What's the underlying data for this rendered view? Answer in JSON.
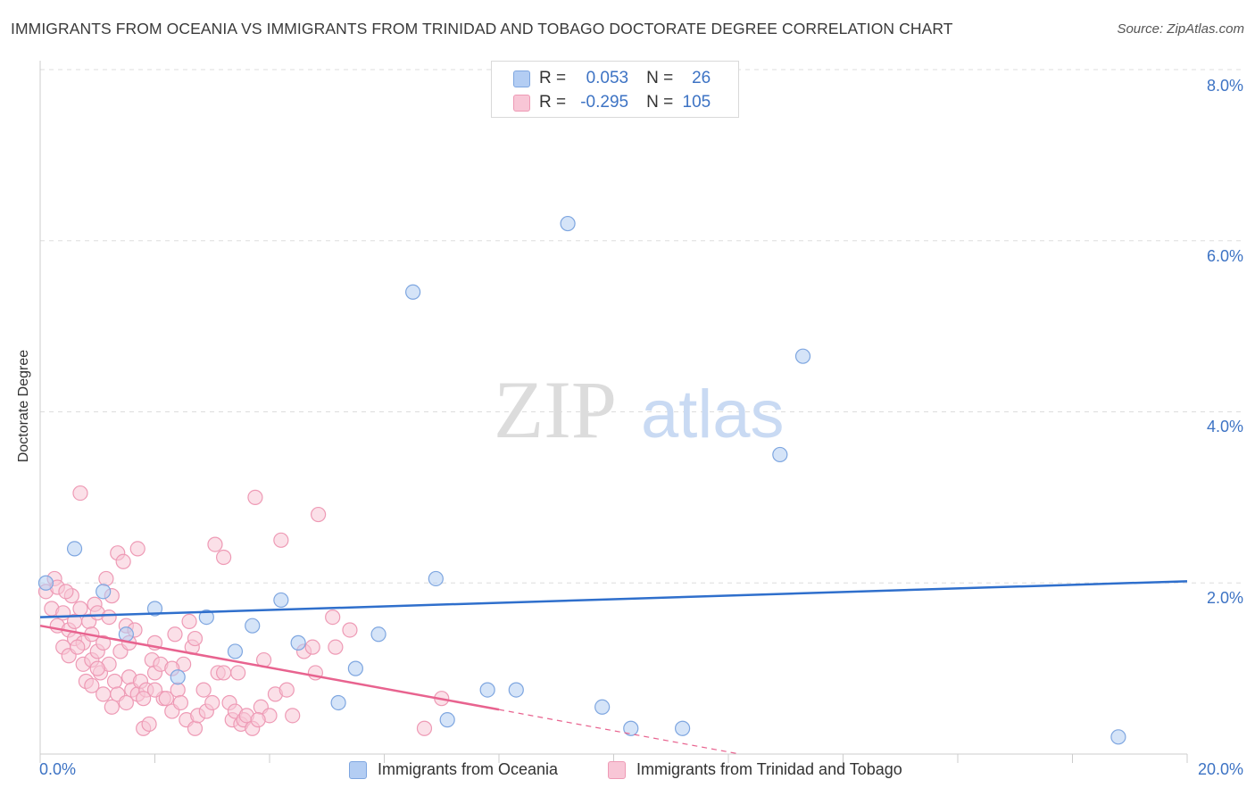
{
  "title": "IMMIGRANTS FROM OCEANIA VS IMMIGRANTS FROM TRINIDAD AND TOBAGO DOCTORATE DEGREE CORRELATION CHART",
  "source": "Source: ZipAtlas.com",
  "watermark": {
    "zip": "ZIP",
    "atlas": "atlas"
  },
  "legend_top": [
    {
      "r_label": "R =",
      "r_value": "0.053",
      "n_label": "N =",
      "n_value": "26"
    },
    {
      "r_label": "R =",
      "r_value": "-0.295",
      "n_label": "N =",
      "n_value": "105"
    }
  ],
  "colors": {
    "blue_fill": "#b3cdf3",
    "blue_stroke": "#7ea6e0",
    "blue_line": "#2f6fcc",
    "pink_fill": "#f8c6d6",
    "pink_stroke": "#ee9ab5",
    "pink_line": "#e8638f",
    "tick_text": "#3d73c4",
    "grid": "#dddddd"
  },
  "chart_data": {
    "type": "scatter",
    "title": "IMMIGRANTS FROM OCEANIA VS IMMIGRANTS FROM TRINIDAD AND TOBAGO DOCTORATE DEGREE CORRELATION CHART",
    "xlabel": "",
    "ylabel": "Doctorate Degree",
    "xlim": [
      0,
      20
    ],
    "ylim": [
      0,
      8
    ],
    "x_tick_labels": [
      "0.0%",
      "20.0%"
    ],
    "y_ticks": [
      2,
      4,
      6,
      8
    ],
    "y_tick_labels": [
      "2.0%",
      "4.0%",
      "6.0%",
      "8.0%"
    ],
    "grid": true,
    "series": [
      {
        "name": "Immigrants from Oceania",
        "color": "blue",
        "R": 0.053,
        "N": 26,
        "trend": {
          "x0": 0,
          "y0": 1.6,
          "x1": 20,
          "y1": 2.02
        },
        "points": [
          [
            0.1,
            2.0
          ],
          [
            0.6,
            2.4
          ],
          [
            1.1,
            1.9
          ],
          [
            1.5,
            1.4
          ],
          [
            2.0,
            1.7
          ],
          [
            2.4,
            0.9
          ],
          [
            2.9,
            1.6
          ],
          [
            3.4,
            1.2
          ],
          [
            3.7,
            1.5
          ],
          [
            4.2,
            1.8
          ],
          [
            4.5,
            1.3
          ],
          [
            5.2,
            0.6
          ],
          [
            5.5,
            1.0
          ],
          [
            5.9,
            1.4
          ],
          [
            6.5,
            5.4
          ],
          [
            6.9,
            2.05
          ],
          [
            7.1,
            0.4
          ],
          [
            7.8,
            0.75
          ],
          [
            8.3,
            0.75
          ],
          [
            9.2,
            6.2
          ],
          [
            9.8,
            0.55
          ],
          [
            10.3,
            0.3
          ],
          [
            11.2,
            0.3
          ],
          [
            12.9,
            3.5
          ],
          [
            13.3,
            4.65
          ],
          [
            18.8,
            0.2
          ]
        ]
      },
      {
        "name": "Immigrants from Trinidad and Tobago",
        "color": "pink",
        "R": -0.295,
        "N": 105,
        "trend": {
          "x0": 0,
          "y0": 1.5,
          "x1": 8.0,
          "y1": 0.52
        },
        "trend_dashed": {
          "x0": 8.0,
          "y0": 0.52,
          "x1": 12.2,
          "y1": 0.0
        },
        "points": [
          [
            0.1,
            1.9
          ],
          [
            0.2,
            1.7
          ],
          [
            0.25,
            2.05
          ],
          [
            0.3,
            1.5
          ],
          [
            0.3,
            1.95
          ],
          [
            0.4,
            1.65
          ],
          [
            0.4,
            1.25
          ],
          [
            0.5,
            1.45
          ],
          [
            0.5,
            1.15
          ],
          [
            0.55,
            1.85
          ],
          [
            0.6,
            1.35
          ],
          [
            0.6,
            1.55
          ],
          [
            0.7,
            3.05
          ],
          [
            0.7,
            1.7
          ],
          [
            0.75,
            1.3
          ],
          [
            0.75,
            1.05
          ],
          [
            0.8,
            0.85
          ],
          [
            0.85,
            1.55
          ],
          [
            0.9,
            1.4
          ],
          [
            0.9,
            1.1
          ],
          [
            0.95,
            1.75
          ],
          [
            1.0,
            1.65
          ],
          [
            1.0,
            1.2
          ],
          [
            1.05,
            0.95
          ],
          [
            1.1,
            0.7
          ],
          [
            1.1,
            1.3
          ],
          [
            1.15,
            2.05
          ],
          [
            1.2,
            1.6
          ],
          [
            1.2,
            1.05
          ],
          [
            1.25,
            1.85
          ],
          [
            1.3,
            0.85
          ],
          [
            1.35,
            2.35
          ],
          [
            1.35,
            0.7
          ],
          [
            1.4,
            1.2
          ],
          [
            1.45,
            2.25
          ],
          [
            1.5,
            1.5
          ],
          [
            1.5,
            0.6
          ],
          [
            1.55,
            0.9
          ],
          [
            1.6,
            0.75
          ],
          [
            1.65,
            1.45
          ],
          [
            1.7,
            2.4
          ],
          [
            1.7,
            0.7
          ],
          [
            1.75,
            0.85
          ],
          [
            1.8,
            0.3
          ],
          [
            1.85,
            0.75
          ],
          [
            1.9,
            0.35
          ],
          [
            1.95,
            1.1
          ],
          [
            2.0,
            1.3
          ],
          [
            2.0,
            0.95
          ],
          [
            2.1,
            1.05
          ],
          [
            2.15,
            0.65
          ],
          [
            2.2,
            0.65
          ],
          [
            2.3,
            0.5
          ],
          [
            2.35,
            1.4
          ],
          [
            2.4,
            0.75
          ],
          [
            2.5,
            1.05
          ],
          [
            2.55,
            0.4
          ],
          [
            2.6,
            1.55
          ],
          [
            2.65,
            1.25
          ],
          [
            2.7,
            0.3
          ],
          [
            2.75,
            0.45
          ],
          [
            2.85,
            0.75
          ],
          [
            2.9,
            0.5
          ],
          [
            3.0,
            0.6
          ],
          [
            3.05,
            2.45
          ],
          [
            3.1,
            0.95
          ],
          [
            3.2,
            2.3
          ],
          [
            3.3,
            0.6
          ],
          [
            3.35,
            0.4
          ],
          [
            3.4,
            0.5
          ],
          [
            3.45,
            0.95
          ],
          [
            3.5,
            0.35
          ],
          [
            3.55,
            0.4
          ],
          [
            3.6,
            0.45
          ],
          [
            3.7,
            0.3
          ],
          [
            3.75,
            3.0
          ],
          [
            3.85,
            0.55
          ],
          [
            3.9,
            1.1
          ],
          [
            4.0,
            0.45
          ],
          [
            4.1,
            0.7
          ],
          [
            4.2,
            2.5
          ],
          [
            4.3,
            0.75
          ],
          [
            4.4,
            0.45
          ],
          [
            4.6,
            1.2
          ],
          [
            4.75,
            1.25
          ],
          [
            4.8,
            0.95
          ],
          [
            4.85,
            2.8
          ],
          [
            5.1,
            1.6
          ],
          [
            5.15,
            1.25
          ],
          [
            5.4,
            1.45
          ],
          [
            6.7,
            0.3
          ],
          [
            7.0,
            0.65
          ],
          [
            2.3,
            1.0
          ],
          [
            1.55,
            1.3
          ],
          [
            0.9,
            0.8
          ],
          [
            0.45,
            1.9
          ],
          [
            2.7,
            1.35
          ],
          [
            1.25,
            0.55
          ],
          [
            3.2,
            0.95
          ],
          [
            2.0,
            0.75
          ],
          [
            1.0,
            1.0
          ],
          [
            0.65,
            1.25
          ],
          [
            1.8,
            0.65
          ],
          [
            2.45,
            0.6
          ],
          [
            3.8,
            0.4
          ]
        ]
      }
    ]
  }
}
